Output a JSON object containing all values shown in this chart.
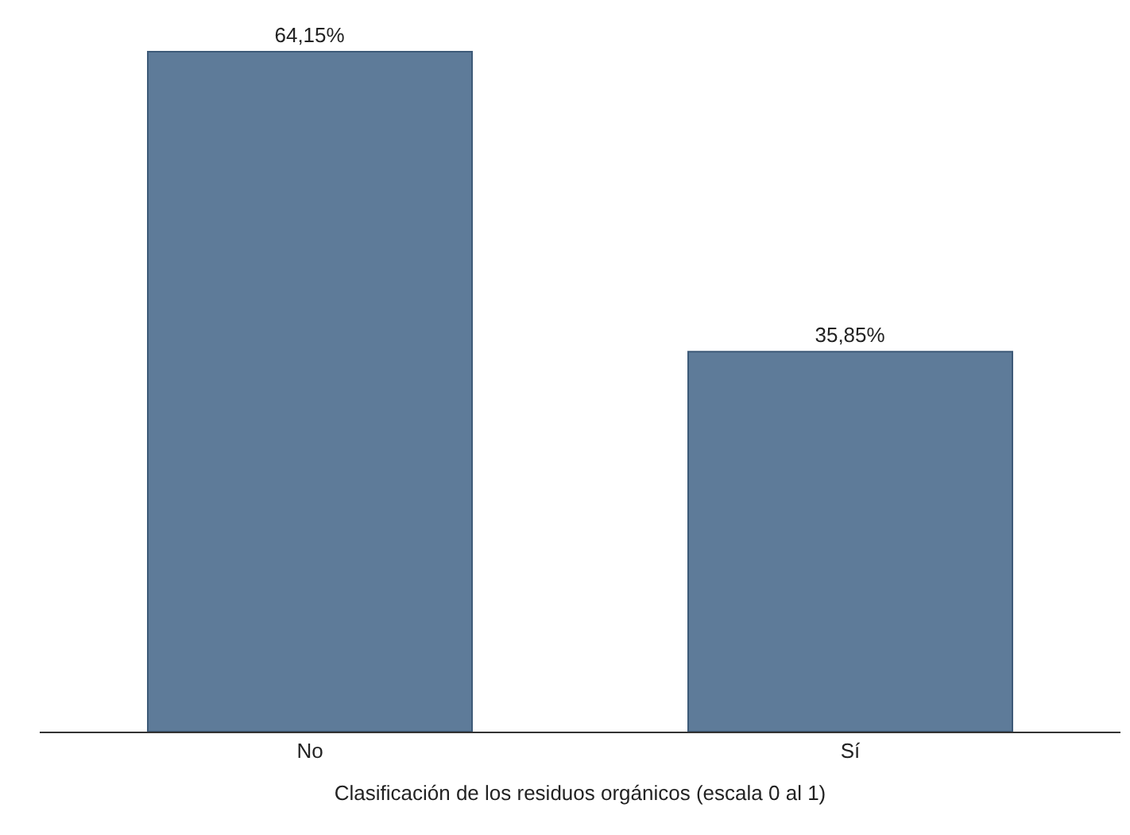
{
  "chart_data": {
    "type": "bar",
    "xlabel": "Clasificación de los residuos orgánicos (escala 0 al 1)",
    "categories": [
      "No",
      "Sí"
    ],
    "values": [
      64.15,
      35.85
    ],
    "value_labels": [
      "64,15%",
      "35,85%"
    ],
    "color": "#5e7b99",
    "legend": false
  }
}
